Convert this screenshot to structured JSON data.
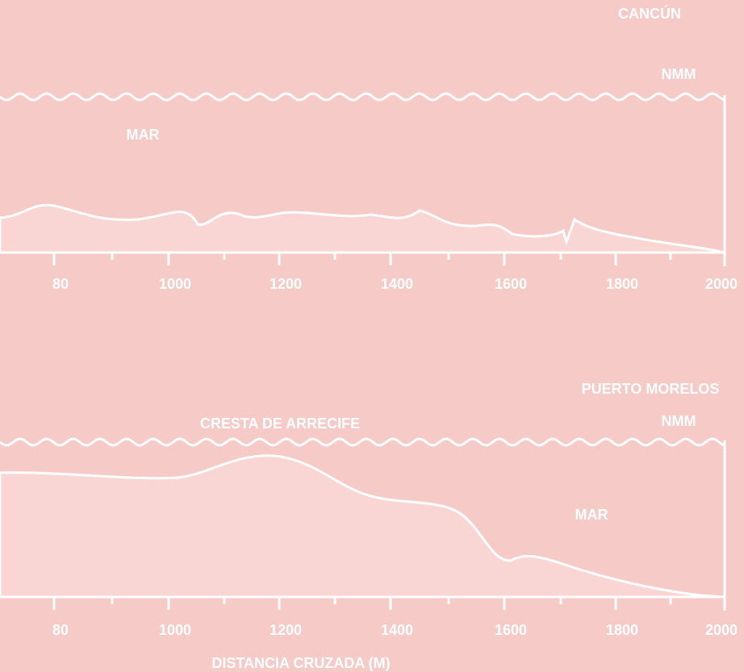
{
  "panels": [
    {
      "place": "CANCÚN",
      "datum": "NMM",
      "sea_label": "MAR",
      "ticks": [
        "80",
        "1000",
        "1200",
        "1400",
        "1600",
        "1800",
        "2000"
      ]
    },
    {
      "place": "PUERTO MORELOS",
      "datum": "NMM",
      "sea_label": "MAR",
      "reef_label": "CRESTA DE ARRECIFE",
      "ticks": [
        "80",
        "1000",
        "1200",
        "1400",
        "1600",
        "1800",
        "2000"
      ]
    }
  ],
  "x_axis_title": "DISTANCIA CRUZADA (M)"
}
